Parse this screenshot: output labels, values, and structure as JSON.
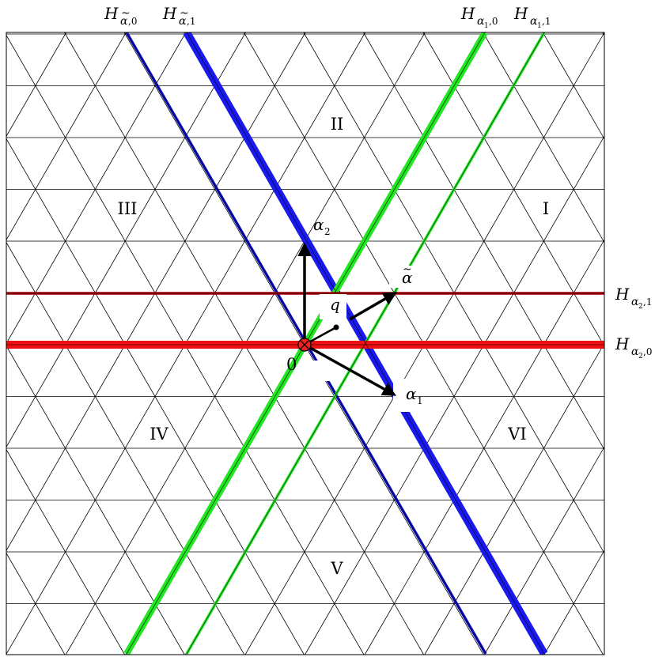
{
  "regions": [
    "I",
    "II",
    "III",
    "IV",
    "V",
    "VI"
  ],
  "origin_label": "0",
  "vectors": {
    "alpha1": {
      "base": "α",
      "sub": "1"
    },
    "alpha2": {
      "base": "α",
      "sub": "2"
    },
    "alpha_tilde": {
      "base": "α",
      "accent": "~"
    },
    "q": {
      "base": "q"
    }
  },
  "hyperplanes": {
    "h_alpha_tilde_0": {
      "base": "H",
      "sub_base": "α",
      "sub_accent": "~",
      "sub_index": ",0",
      "color": "#0a0acc"
    },
    "h_alpha_tilde_1": {
      "base": "H",
      "sub_base": "α",
      "sub_accent": "~",
      "sub_index": ",1",
      "color": "#1a1aee"
    },
    "h_alpha1_0": {
      "base": "H",
      "sub_base": "α",
      "sub_num": "1",
      "sub_index": ",0",
      "color": "#22e622"
    },
    "h_alpha1_1": {
      "base": "H",
      "sub_base": "α",
      "sub_num": "1",
      "sub_index": ",1",
      "color": "#22e622"
    },
    "h_alpha2_0": {
      "base": "H",
      "sub_base": "α",
      "sub_num": "2",
      "sub_index": ",0",
      "color": "#ee1111"
    },
    "h_alpha2_1": {
      "base": "H",
      "sub_base": "α",
      "sub_num": "2",
      "sub_index": ",1",
      "color": "#aa0000"
    }
  },
  "colors": {
    "grid": "#000000",
    "vector": "#000000",
    "origin_marker": "#ee2222"
  }
}
